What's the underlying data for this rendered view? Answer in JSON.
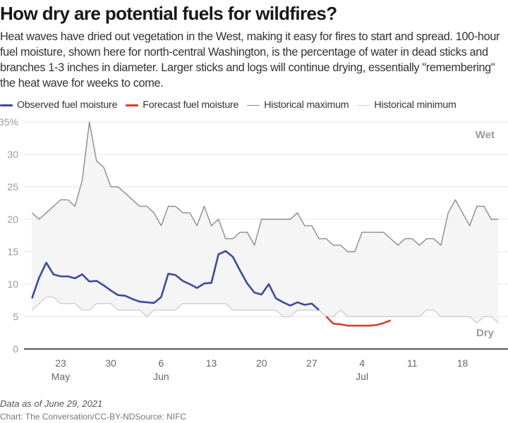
{
  "header": {
    "title": "How dry are potential fuels for wildfires?",
    "subtitle": "Heat waves have dried out vegetation in the West, making it easy for fires to start and spread. 100-hour fuel moisture, shown here for north-central Washington, is the percentage of water in dead sticks and branches 1-3 inches in diameter. Larger sticks and logs will continue drying, essentially \"remembering\" the heat wave for weeks to come."
  },
  "legend": [
    {
      "label": "Observed fuel moisture",
      "color": "#3d4a9e"
    },
    {
      "label": "Forecast fuel moisture",
      "color": "#e03a2f"
    },
    {
      "label": "Historical maximum",
      "color": "#8c8c8c"
    },
    {
      "label": "Historical minimum",
      "color": "#cfcfcf"
    }
  ],
  "footer": {
    "note": "Data as of June 29, 2021",
    "source": "Chart: The Conversation/CC-BY-NDSource: NIFC"
  },
  "chart_data": {
    "type": "line",
    "title": "How dry are potential fuels for wildfires?",
    "xlabel": "",
    "ylabel": "",
    "x_start": "2021-05-19",
    "x_end": "2021-07-23",
    "ylim": [
      0,
      35
    ],
    "y_ticks": [
      0,
      5,
      10,
      15,
      20,
      25,
      30,
      35
    ],
    "y_tick_labels": [
      "0",
      "5",
      "10",
      "15",
      "20",
      "25",
      "30",
      "35%"
    ],
    "x_ticks": [
      {
        "date": "2021-05-23",
        "label": "23",
        "month": "May"
      },
      {
        "date": "2021-05-30",
        "label": "30",
        "month": ""
      },
      {
        "date": "2021-06-06",
        "label": "6",
        "month": "Jun"
      },
      {
        "date": "2021-06-13",
        "label": "13",
        "month": ""
      },
      {
        "date": "2021-06-20",
        "label": "20",
        "month": ""
      },
      {
        "date": "2021-06-27",
        "label": "27",
        "month": ""
      },
      {
        "date": "2021-07-04",
        "label": "4",
        "month": "Jul"
      },
      {
        "date": "2021-07-11",
        "label": "11",
        "month": ""
      },
      {
        "date": "2021-07-18",
        "label": "18",
        "month": ""
      }
    ],
    "grid": true,
    "legend_position": "top-left",
    "annotations": [
      {
        "text": "Wet",
        "position": "top-right"
      },
      {
        "text": "Dry",
        "position": "bottom-right"
      }
    ],
    "series": [
      {
        "name": "Historical maximum",
        "start": "2021-05-19",
        "values": [
          21,
          20,
          21,
          22,
          23,
          23,
          22,
          26,
          35,
          29,
          28,
          25,
          25,
          24,
          23,
          22,
          22,
          21,
          19,
          22,
          22,
          21,
          21,
          19,
          22,
          19,
          20,
          17,
          17,
          18,
          18,
          16,
          20,
          20,
          20,
          20,
          20,
          21,
          19,
          19,
          17,
          17,
          16,
          16,
          15,
          15,
          18,
          18,
          18,
          18,
          17,
          16,
          17,
          17,
          16,
          17,
          17,
          16,
          21,
          23,
          21,
          19,
          22,
          22,
          20,
          20
        ]
      },
      {
        "name": "Historical minimum",
        "start": "2021-05-19",
        "values": [
          6,
          7,
          8,
          8,
          7,
          7,
          7,
          6,
          6,
          7,
          7,
          7,
          6,
          6,
          6,
          6,
          5,
          6,
          6,
          6,
          6,
          7,
          7,
          7,
          7,
          7,
          7,
          7,
          6,
          6,
          6,
          6,
          6,
          6,
          6,
          5,
          5,
          6,
          6,
          6,
          6,
          5,
          5,
          6,
          5,
          5,
          5,
          5,
          5,
          5,
          5,
          5,
          5,
          5,
          5,
          6,
          6,
          5,
          5,
          5,
          5,
          5,
          4,
          5,
          5,
          4
        ]
      },
      {
        "name": "Observed fuel moisture",
        "start": "2021-05-19",
        "values": [
          7.8,
          11.0,
          13.3,
          11.5,
          11.2,
          11.2,
          10.9,
          11.5,
          10.4,
          10.5,
          9.8,
          9.0,
          8.3,
          8.2,
          7.7,
          7.3,
          7.2,
          7.1,
          8.0,
          11.6,
          11.4,
          10.5,
          10.0,
          9.4,
          10.1,
          10.2,
          14.6,
          15.1,
          14.2,
          12.1,
          10.1,
          8.7,
          8.4,
          10.0,
          7.8,
          7.2,
          6.7,
          7.2,
          6.8,
          7.0,
          6.0
        ]
      },
      {
        "name": "Forecast fuel moisture",
        "start": "2021-06-29",
        "values": [
          5.0,
          3.9,
          3.8,
          3.6,
          3.6,
          3.6,
          3.6,
          3.7,
          4.0,
          4.4
        ]
      }
    ]
  }
}
